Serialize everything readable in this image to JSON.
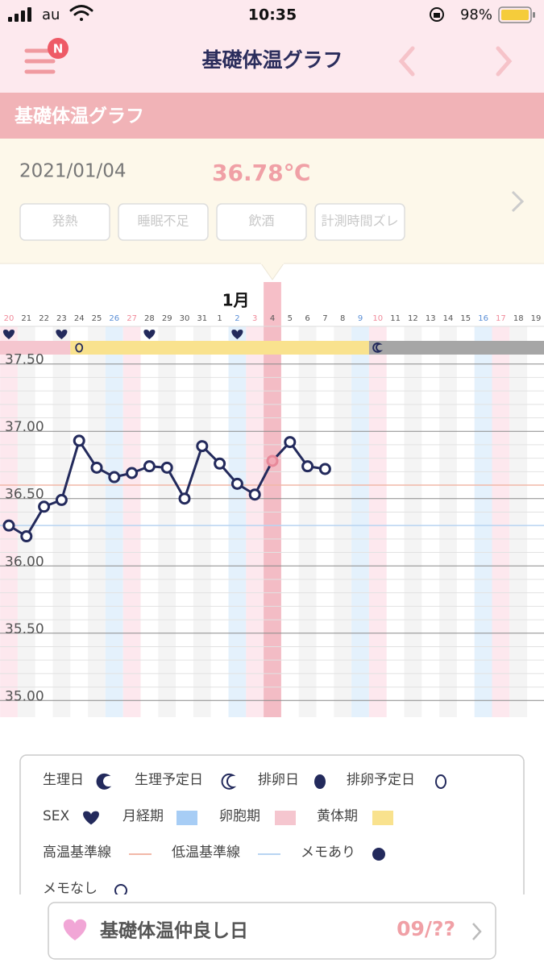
{
  "status_bar": {
    "carrier": "au",
    "time": "10:35",
    "battery": "98%"
  },
  "nav": {
    "badge": "N",
    "title": "基礎体温グラフ"
  },
  "section": {
    "title": "基礎体温グラフ"
  },
  "info": {
    "date": "2021/01/04",
    "temperature": "36.78℃",
    "tags": [
      "発熱",
      "睡眠不足",
      "飲酒",
      "計測時間ズレ"
    ]
  },
  "chart_data": {
    "type": "line",
    "month_label": "1月",
    "month_label_index": 12,
    "categories": [
      "20",
      "21",
      "22",
      "23",
      "24",
      "25",
      "26",
      "27",
      "28",
      "29",
      "30",
      "31",
      "1",
      "2",
      "3",
      "4",
      "5",
      "6",
      "7",
      "8",
      "9",
      "10",
      "11",
      "12",
      "13",
      "14",
      "15",
      "16",
      "17",
      "18",
      "19"
    ],
    "first_day_of_week": "sunday",
    "label_colors": {
      "weekday": "#555555",
      "saturday": "#5b8fd6",
      "sunday": "#f08a9a"
    },
    "series": [
      {
        "name": "基礎体温",
        "color": "#232a5c",
        "values": [
          36.3,
          36.22,
          36.44,
          36.49,
          36.93,
          36.73,
          36.66,
          36.69,
          36.74,
          36.73,
          36.5,
          36.89,
          36.76,
          36.61,
          36.53,
          36.78,
          36.92,
          36.74,
          36.72,
          null,
          null,
          null,
          null,
          null,
          null,
          null,
          null,
          null,
          null,
          null,
          null
        ]
      }
    ],
    "selected_index": 15,
    "selected_color": "#f3a9b6",
    "ylim": [
      34.9,
      37.6
    ],
    "yticks": [
      {
        "value": 35.0,
        "label": "35.00"
      },
      {
        "value": 35.5,
        "label": "35.50"
      },
      {
        "value": 36.0,
        "label": "36.00"
      },
      {
        "value": 36.5,
        "label": "36.50"
      },
      {
        "value": 37.0,
        "label": "37.00"
      },
      {
        "value": 37.5,
        "label": "37.50"
      }
    ],
    "minor_yticks": [
      35.1,
      35.2,
      35.3,
      35.4,
      35.6,
      35.7,
      35.8,
      35.9,
      36.1,
      36.2,
      36.3,
      36.4,
      36.6,
      36.7,
      36.8,
      36.9,
      37.1,
      37.2,
      37.3,
      37.4
    ],
    "grid": true,
    "high_baseline": {
      "value": 36.6,
      "color": "#f2b8a8"
    },
    "low_baseline": {
      "value": 36.3,
      "color": "#b8d4f2"
    },
    "sex_days": [
      0,
      3,
      8,
      13
    ],
    "phases": [
      {
        "from": 0,
        "to": 3,
        "color": "#f5c6cf",
        "icon": "none"
      },
      {
        "from": 4,
        "to": 20,
        "color": "#f9e28e",
        "icon": "oval-outline"
      },
      {
        "from": 21,
        "to": 30,
        "color": "#a6a6a6",
        "icon": "moon-outline"
      }
    ]
  },
  "legend": [
    {
      "label": "生理日",
      "icon": "moon-filled",
      "color": "#232a5c"
    },
    {
      "label": "生理予定日",
      "icon": "moon-outline",
      "color": "#232a5c"
    },
    {
      "label": "排卵日",
      "icon": "oval-filled",
      "color": "#232a5c"
    },
    {
      "label": "排卵予定日",
      "icon": "oval-outline",
      "color": "#232a5c"
    },
    {
      "label": "SEX",
      "icon": "heart",
      "color": "#232a5c"
    },
    {
      "label": "月経期",
      "icon": "square",
      "color": "#a7cdf5"
    },
    {
      "label": "卵胞期",
      "icon": "square",
      "color": "#f5c6cf"
    },
    {
      "label": "黄体期",
      "icon": "square",
      "color": "#f9e28e"
    },
    {
      "label": "高温基準線",
      "icon": "line",
      "color": "#f2b8a8"
    },
    {
      "label": "低温基準線",
      "icon": "line",
      "color": "#b8d4f2"
    },
    {
      "label": "メモあり",
      "icon": "dot-filled",
      "color": "#232a5c"
    },
    {
      "label": "メモなし",
      "icon": "dot-outline",
      "color": "#232a5c"
    }
  ],
  "bottom_card": {
    "title": "基礎体温仲良し日",
    "value": "09/??"
  }
}
